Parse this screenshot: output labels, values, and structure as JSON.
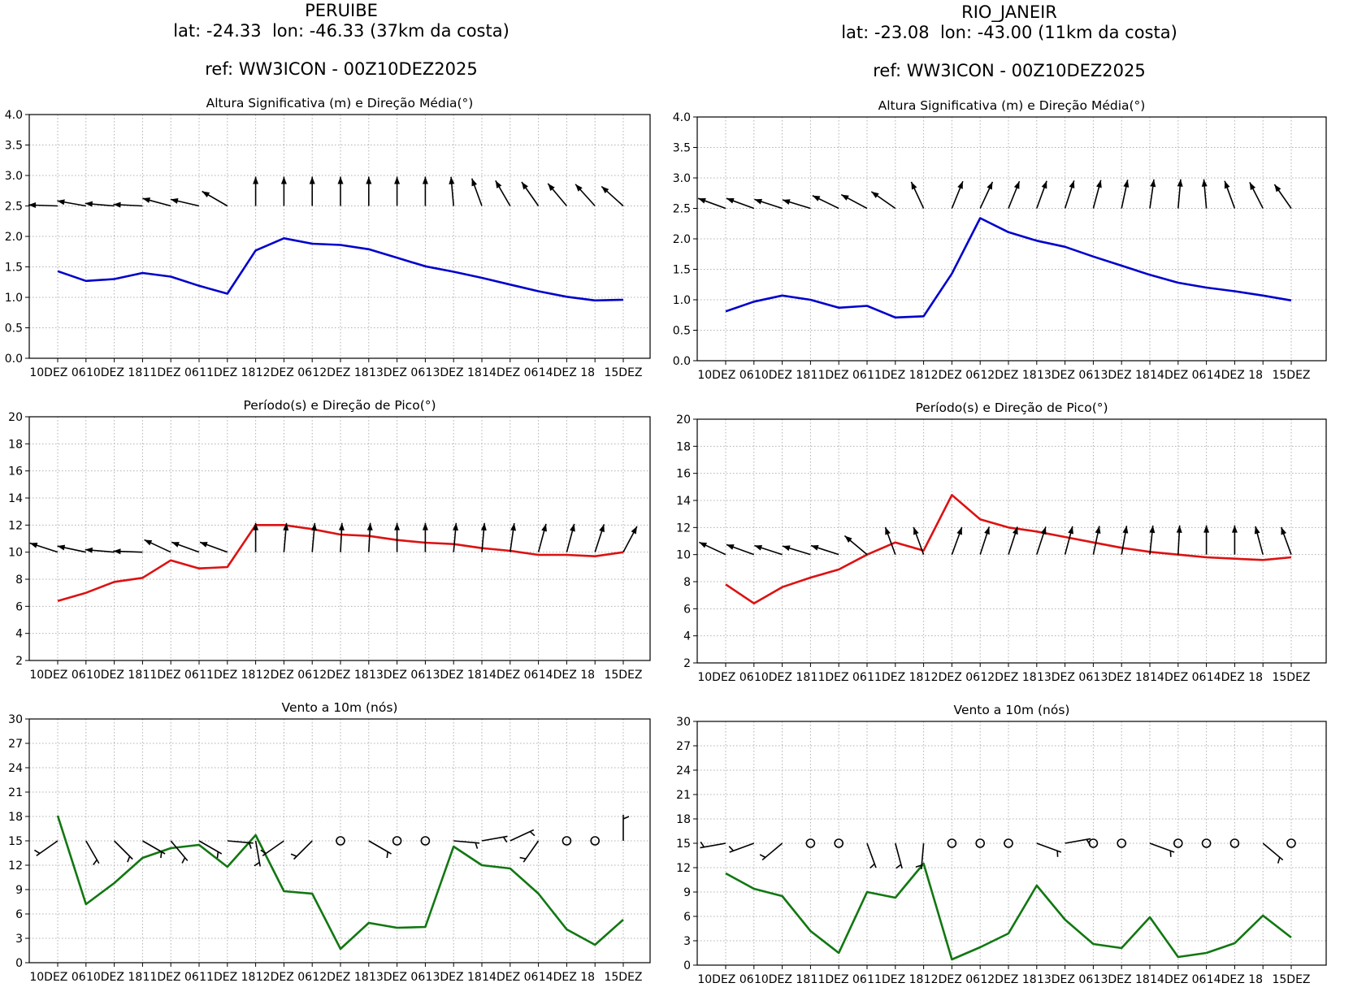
{
  "stations": [
    {
      "name": "PERUIBE",
      "coords": "lat: -24.33  lon: -46.33 (37km da costa)",
      "ref": "ref: WW3ICON - 00Z10DEZ2025"
    },
    {
      "name": "RIO_JANEIR",
      "coords": "lat: -23.08  lon: -43.00 (11km da costa)",
      "ref": "ref: WW3ICON - 00Z10DEZ2025"
    }
  ],
  "colors": {
    "hs": "#0000cc",
    "tp": "#dd1111",
    "wind": "#117711",
    "arrow": "#000000",
    "grid": "#b0b0b0"
  },
  "x_tick_labels": [
    "10DEZ 06",
    "10DEZ 18",
    "11DEZ 06",
    "11DEZ 18",
    "12DEZ 06",
    "12DEZ 18",
    "13DEZ 06",
    "13DEZ 18",
    "14DEZ 06",
    "14DEZ 18",
    "15DEZ"
  ],
  "chart_data": [
    {
      "type": "line",
      "station": "PERUIBE",
      "title": "Altura Significativa (m) e Direção Média(°)",
      "ylim": [
        0,
        4
      ],
      "yticks": [
        "0.0",
        "0.5",
        "1.0",
        "1.5",
        "2.0",
        "2.5",
        "3.0",
        "3.5",
        "4.0"
      ],
      "ytick_values": [
        0,
        0.5,
        1,
        1.5,
        2,
        2.5,
        3,
        3.5,
        4
      ],
      "grid": true,
      "series": [
        {
          "name": "Hs",
          "color": "#0000cc",
          "values": [
            1.43,
            1.27,
            1.3,
            1.4,
            1.34,
            1.19,
            1.06,
            1.77,
            1.97,
            1.88,
            1.86,
            1.79,
            1.65,
            1.51,
            1.42,
            1.32,
            1.21,
            1.1,
            1.01,
            0.95,
            0.96
          ]
        }
      ],
      "arrows": {
        "base": 2.5,
        "direction_deg": [
          272,
          280,
          275,
          273,
          285,
          283,
          300,
          0,
          0,
          0,
          0,
          0,
          0,
          0,
          355,
          340,
          330,
          325,
          320,
          318,
          312
        ]
      }
    },
    {
      "type": "line",
      "station": "PERUIBE",
      "title": "Período(s) e Direção de Pico(°)",
      "ylim": [
        2,
        20
      ],
      "yticks": [
        "2",
        "4",
        "6",
        "8",
        "10",
        "12",
        "14",
        "16",
        "18",
        "20"
      ],
      "ytick_values": [
        2,
        4,
        6,
        8,
        10,
        12,
        14,
        16,
        18,
        20
      ],
      "grid": true,
      "series": [
        {
          "name": "Tp",
          "color": "#dd1111",
          "values": [
            6.4,
            7.0,
            7.8,
            8.1,
            9.4,
            8.8,
            8.9,
            12.0,
            12.0,
            11.7,
            11.3,
            11.2,
            10.9,
            10.7,
            10.6,
            10.3,
            10.1,
            9.8,
            9.8,
            9.7,
            10.0
          ]
        }
      ],
      "arrows": {
        "base": 10,
        "direction_deg": [
          288,
          282,
          275,
          272,
          295,
          290,
          290,
          0,
          5,
          5,
          3,
          3,
          0,
          0,
          5,
          5,
          8,
          15,
          15,
          18,
          28
        ]
      }
    },
    {
      "type": "line",
      "station": "PERUIBE",
      "title": "Vento a 10m (nós)",
      "ylim": [
        0,
        30
      ],
      "yticks": [
        "0",
        "3",
        "6",
        "9",
        "12",
        "15",
        "18",
        "21",
        "24",
        "27",
        "30"
      ],
      "ytick_values": [
        0,
        3,
        6,
        9,
        12,
        15,
        18,
        21,
        24,
        27,
        30
      ],
      "grid": true,
      "series": [
        {
          "name": "Vento",
          "color": "#117711",
          "values": [
            18.1,
            7.2,
            9.8,
            12.9,
            14.1,
            14.5,
            11.8,
            15.7,
            8.8,
            8.5,
            1.7,
            4.9,
            4.3,
            4.4,
            14.3,
            12.0,
            11.6,
            8.5,
            4.1,
            2.2,
            5.3
          ]
        }
      ],
      "barbs": {
        "base": 15,
        "calm": [
          false,
          false,
          false,
          false,
          false,
          false,
          false,
          false,
          false,
          false,
          true,
          false,
          true,
          true,
          false,
          false,
          false,
          false,
          true,
          true,
          false
        ],
        "direction_deg": [
          235,
          150,
          135,
          120,
          140,
          120,
          95,
          170,
          235,
          225,
          0,
          120,
          0,
          0,
          95,
          80,
          65,
          215,
          0,
          0,
          0
        ]
      }
    },
    {
      "type": "line",
      "station": "RIO_JANEIR",
      "title": "Altura Significativa (m) e Direção Média(°)",
      "ylim": [
        0,
        4
      ],
      "yticks": [
        "0.0",
        "0.5",
        "1.0",
        "1.5",
        "2.0",
        "2.5",
        "3.0",
        "3.5",
        "4.0"
      ],
      "ytick_values": [
        0,
        0.5,
        1,
        1.5,
        2,
        2.5,
        3,
        3.5,
        4
      ],
      "grid": true,
      "series": [
        {
          "name": "Hs",
          "color": "#0000cc",
          "values": [
            0.81,
            0.97,
            1.07,
            1.0,
            0.87,
            0.9,
            0.71,
            0.73,
            1.43,
            2.34,
            2.11,
            1.97,
            1.87,
            1.71,
            1.56,
            1.41,
            1.28,
            1.2,
            1.14,
            1.07,
            0.99
          ]
        }
      ],
      "arrows": {
        "base": 2.5,
        "direction_deg": [
          290,
          290,
          288,
          287,
          296,
          298,
          305,
          335,
          22,
          25,
          22,
          20,
          18,
          15,
          12,
          8,
          5,
          355,
          340,
          333,
          325
        ]
      }
    },
    {
      "type": "line",
      "station": "RIO_JANEIR",
      "title": "Período(s) e Direção de Pico(°)",
      "ylim": [
        2,
        20
      ],
      "yticks": [
        "2",
        "4",
        "6",
        "8",
        "10",
        "12",
        "14",
        "16",
        "18",
        "20"
      ],
      "ytick_values": [
        2,
        4,
        6,
        8,
        10,
        12,
        14,
        16,
        18,
        20
      ],
      "grid": true,
      "series": [
        {
          "name": "Tp",
          "color": "#dd1111",
          "values": [
            7.8,
            6.4,
            7.6,
            8.3,
            8.9,
            10.0,
            10.9,
            10.3,
            14.4,
            12.6,
            12.0,
            11.7,
            11.3,
            10.9,
            10.5,
            10.2,
            10.0,
            9.8,
            9.7,
            9.6,
            9.8
          ]
        }
      ],
      "arrows": {
        "base": 10,
        "direction_deg": [
          295,
          290,
          288,
          287,
          288,
          310,
          340,
          340,
          20,
          18,
          18,
          18,
          15,
          12,
          10,
          6,
          3,
          0,
          0,
          345,
          340
        ]
      }
    },
    {
      "type": "line",
      "station": "RIO_JANEIR",
      "title": "Vento a 10m (nós)",
      "ylim": [
        0,
        30
      ],
      "yticks": [
        "0",
        "3",
        "6",
        "9",
        "12",
        "15",
        "18",
        "21",
        "24",
        "27",
        "30"
      ],
      "ytick_values": [
        0,
        3,
        6,
        9,
        12,
        15,
        18,
        21,
        24,
        27,
        30
      ],
      "grid": true,
      "series": [
        {
          "name": "Vento",
          "color": "#117711",
          "values": [
            11.3,
            9.4,
            8.5,
            4.2,
            1.5,
            9.0,
            8.3,
            12.5,
            0.7,
            2.2,
            3.9,
            9.8,
            5.6,
            2.6,
            2.1,
            5.9,
            1.0,
            1.5,
            2.7,
            6.1,
            3.4
          ]
        }
      ],
      "barbs": {
        "base": 15,
        "calm": [
          false,
          false,
          false,
          true,
          true,
          false,
          false,
          false,
          true,
          true,
          true,
          false,
          false,
          true,
          true,
          false,
          true,
          true,
          true,
          false,
          true
        ],
        "direction_deg": [
          260,
          250,
          230,
          0,
          0,
          160,
          165,
          185,
          0,
          0,
          0,
          110,
          80,
          0,
          0,
          110,
          0,
          0,
          0,
          130,
          0
        ]
      }
    }
  ]
}
